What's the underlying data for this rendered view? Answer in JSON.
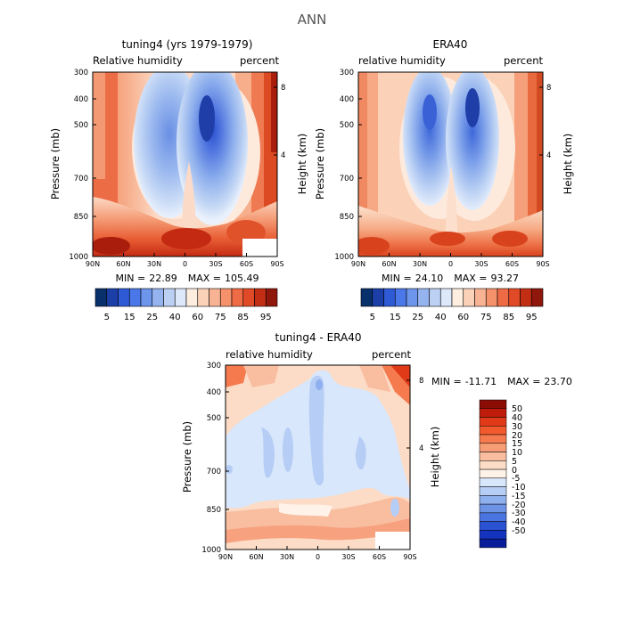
{
  "page_title": "ANN",
  "chart_data": [
    {
      "type": "heatmap",
      "id": "model",
      "title": "tuning4 (yrs 1979-1979)",
      "variable_label": "Relative humidity",
      "units_label": "percent",
      "ylabel": "Pressure (mb)",
      "ylabel_right": "Height (km)",
      "y_ticks": [
        "300",
        "400",
        "500",
        "700",
        "850",
        "1000"
      ],
      "x_ticks": [
        "90N",
        "60N",
        "30N",
        "0",
        "30S",
        "60S",
        "90S"
      ],
      "height_ticks": [
        "8",
        "4"
      ],
      "min_label": "MIN =",
      "min": "22.89",
      "max_label": "MAX =",
      "max": "105.49",
      "stats": "MIN =  22.89   MAX = 105.49"
    },
    {
      "type": "heatmap",
      "id": "obs",
      "title": "ERA40",
      "variable_label": "relative humidity",
      "units_label": "percent",
      "ylabel": "Pressure (mb)",
      "ylabel_right": "Height (km)",
      "y_ticks": [
        "300",
        "400",
        "500",
        "700",
        "850",
        "1000"
      ],
      "x_ticks": [
        "90N",
        "60N",
        "30N",
        "0",
        "30S",
        "60S",
        "90S"
      ],
      "height_ticks": [
        "8",
        "4"
      ],
      "min_label": "MIN =",
      "min": "24.10",
      "max_label": "MAX =",
      "max": "93.27",
      "stats": "MIN =  24.10   MAX =  93.27"
    },
    {
      "type": "heatmap",
      "id": "diff",
      "title": "tuning4 - ERA40",
      "variable_label": "relative humidity",
      "units_label": "percent",
      "ylabel": "Pressure (mb)",
      "ylabel_right": "Height (km)",
      "y_ticks": [
        "300",
        "400",
        "500",
        "700",
        "850",
        "1000"
      ],
      "x_ticks": [
        "90N",
        "60N",
        "30N",
        "0",
        "30S",
        "60S",
        "90S"
      ],
      "height_ticks": [
        "8",
        "4"
      ],
      "min_label": "MIN =",
      "min": "-11.71",
      "max_label": "MAX =",
      "max": "23.70",
      "stats": "MIN = -11.71    MAX =  23.70"
    }
  ],
  "colorbar_abs": {
    "labels": [
      "5",
      "15",
      "25",
      "40",
      "60",
      "75",
      "85",
      "95"
    ],
    "colors": [
      "#08306b",
      "#1b3fa6",
      "#2e5ad6",
      "#4a78e8",
      "#6d95ec",
      "#95b4ef",
      "#bcd0f4",
      "#dde8fb",
      "#fdeedf",
      "#fbd2b8",
      "#f8b394",
      "#f5926c",
      "#ef6b45",
      "#e14a26",
      "#c22e14",
      "#8f170b"
    ]
  },
  "colorbar_diff": {
    "labels": [
      "50",
      "40",
      "30",
      "20",
      "15",
      "10",
      "5",
      "0",
      "-5",
      "-10",
      "-15",
      "-20",
      "-30",
      "-40",
      "-50"
    ],
    "colors": [
      "#8b0d05",
      "#c01c0b",
      "#e03a18",
      "#f25a2e",
      "#f57b4f",
      "#f79d76",
      "#f9bd9f",
      "#fcdcc6",
      "#fff2e8",
      "#d8e7fb",
      "#b6cdf5",
      "#8fb0ee",
      "#6d93e7",
      "#4a74df",
      "#2b52d3",
      "#1434c0",
      "#081d99"
    ]
  },
  "colors": {
    "deep_blue": "#1f3ea8",
    "mid_blue": "#6f93e7",
    "light_blue": "#d7e6fb",
    "cream": "#fdeedf",
    "light_red": "#f9c2a6",
    "mid_red": "#f07d55",
    "deep_red": "#a81d0c"
  }
}
